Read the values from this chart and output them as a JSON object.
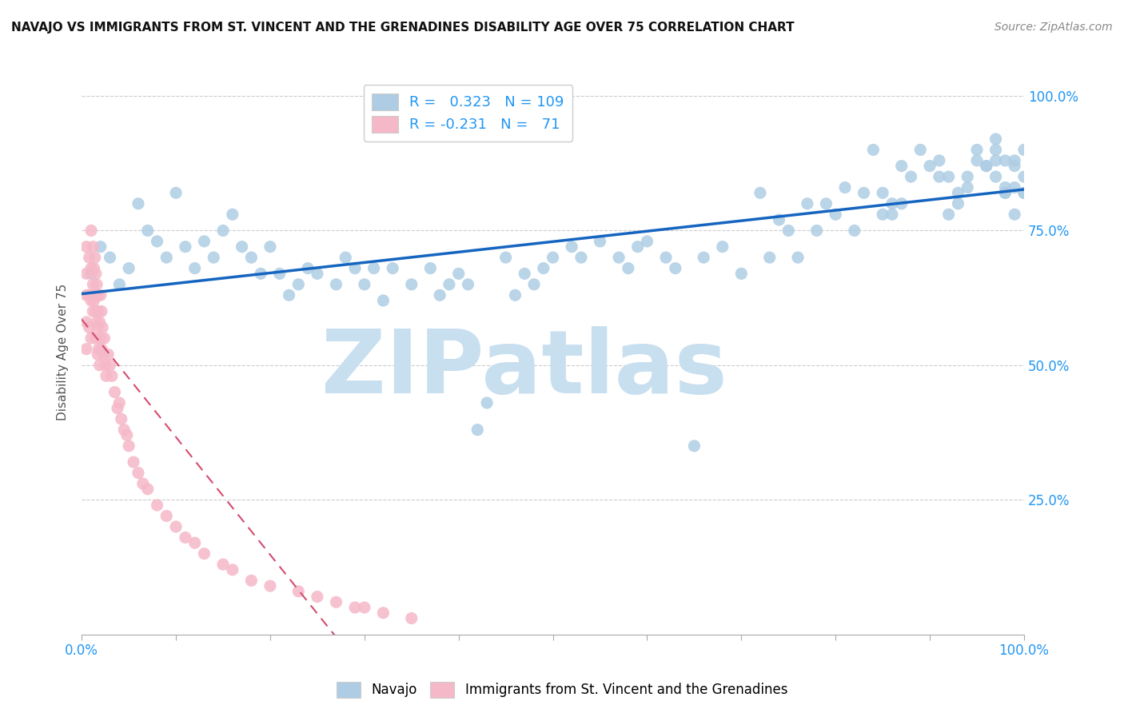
{
  "title": "NAVAJO VS IMMIGRANTS FROM ST. VINCENT AND THE GRENADINES DISABILITY AGE OVER 75 CORRELATION CHART",
  "source": "Source: ZipAtlas.com",
  "ylabel": "Disability Age Over 75",
  "xlabel": "",
  "watermark": "ZIPatlas",
  "navajo_R": 0.323,
  "navajo_N": 109,
  "svg_R": -0.231,
  "svg_N": 71,
  "navajo_color": "#aecde4",
  "svg_color": "#f5b8c8",
  "navajo_trend_color": "#1565C0",
  "svg_trend_color": "#d44c6e",
  "navajo_scatter": {
    "x": [
      0.01,
      0.02,
      0.03,
      0.04,
      0.05,
      0.06,
      0.07,
      0.08,
      0.09,
      0.1,
      0.11,
      0.12,
      0.13,
      0.14,
      0.15,
      0.16,
      0.17,
      0.18,
      0.19,
      0.2,
      0.21,
      0.22,
      0.23,
      0.24,
      0.25,
      0.27,
      0.28,
      0.29,
      0.3,
      0.31,
      0.32,
      0.33,
      0.35,
      0.37,
      0.38,
      0.39,
      0.4,
      0.41,
      0.42,
      0.43,
      0.45,
      0.46,
      0.47,
      0.48,
      0.49,
      0.5,
      0.52,
      0.53,
      0.55,
      0.57,
      0.58,
      0.59,
      0.6,
      0.62,
      0.63,
      0.65,
      0.66,
      0.68,
      0.7,
      0.72,
      0.73,
      0.74,
      0.75,
      0.76,
      0.77,
      0.78,
      0.79,
      0.8,
      0.81,
      0.82,
      0.83,
      0.84,
      0.85,
      0.86,
      0.87,
      0.88,
      0.89,
      0.9,
      0.91,
      0.92,
      0.93,
      0.94,
      0.95,
      0.96,
      0.97,
      0.97,
      0.98,
      0.98,
      0.99,
      0.99,
      1.0,
      1.0,
      1.0,
      0.85,
      0.86,
      0.87,
      0.91,
      0.92,
      0.93,
      0.94,
      0.95,
      0.96,
      0.97,
      0.97,
      0.98,
      0.98,
      0.99,
      0.99,
      1.0
    ],
    "y": [
      0.67,
      0.72,
      0.7,
      0.65,
      0.68,
      0.8,
      0.75,
      0.73,
      0.7,
      0.82,
      0.72,
      0.68,
      0.73,
      0.7,
      0.75,
      0.78,
      0.72,
      0.7,
      0.67,
      0.72,
      0.67,
      0.63,
      0.65,
      0.68,
      0.67,
      0.65,
      0.7,
      0.68,
      0.65,
      0.68,
      0.62,
      0.68,
      0.65,
      0.68,
      0.63,
      0.65,
      0.67,
      0.65,
      0.38,
      0.43,
      0.7,
      0.63,
      0.67,
      0.65,
      0.68,
      0.7,
      0.72,
      0.7,
      0.73,
      0.7,
      0.68,
      0.72,
      0.73,
      0.7,
      0.68,
      0.35,
      0.7,
      0.72,
      0.67,
      0.82,
      0.7,
      0.77,
      0.75,
      0.7,
      0.8,
      0.75,
      0.8,
      0.78,
      0.83,
      0.75,
      0.82,
      0.9,
      0.82,
      0.78,
      0.8,
      0.85,
      0.9,
      0.87,
      0.88,
      0.85,
      0.82,
      0.83,
      0.88,
      0.87,
      0.92,
      0.9,
      0.82,
      0.88,
      0.78,
      0.83,
      0.85,
      0.9,
      0.82,
      0.78,
      0.8,
      0.87,
      0.85,
      0.78,
      0.8,
      0.85,
      0.9,
      0.87,
      0.88,
      0.85,
      0.82,
      0.83,
      0.88,
      0.87,
      0.82
    ]
  },
  "svg_scatter": {
    "x": [
      0.005,
      0.005,
      0.005,
      0.005,
      0.005,
      0.008,
      0.008,
      0.008,
      0.01,
      0.01,
      0.01,
      0.01,
      0.012,
      0.012,
      0.012,
      0.013,
      0.013,
      0.014,
      0.014,
      0.015,
      0.015,
      0.015,
      0.016,
      0.016,
      0.017,
      0.017,
      0.017,
      0.018,
      0.018,
      0.019,
      0.019,
      0.02,
      0.02,
      0.021,
      0.021,
      0.022,
      0.023,
      0.024,
      0.025,
      0.026,
      0.028,
      0.03,
      0.032,
      0.035,
      0.038,
      0.04,
      0.042,
      0.045,
      0.048,
      0.05,
      0.055,
      0.06,
      0.065,
      0.07,
      0.08,
      0.09,
      0.1,
      0.11,
      0.12,
      0.13,
      0.15,
      0.16,
      0.18,
      0.2,
      0.23,
      0.25,
      0.27,
      0.29,
      0.3,
      0.32,
      0.35
    ],
    "y": [
      0.72,
      0.67,
      0.63,
      0.58,
      0.53,
      0.7,
      0.63,
      0.57,
      0.75,
      0.68,
      0.62,
      0.55,
      0.72,
      0.65,
      0.6,
      0.68,
      0.62,
      0.7,
      0.63,
      0.67,
      0.6,
      0.55,
      0.65,
      0.58,
      0.63,
      0.57,
      0.52,
      0.6,
      0.53,
      0.58,
      0.5,
      0.63,
      0.55,
      0.6,
      0.53,
      0.57,
      0.52,
      0.55,
      0.5,
      0.48,
      0.52,
      0.5,
      0.48,
      0.45,
      0.42,
      0.43,
      0.4,
      0.38,
      0.37,
      0.35,
      0.32,
      0.3,
      0.28,
      0.27,
      0.24,
      0.22,
      0.2,
      0.18,
      0.17,
      0.15,
      0.13,
      0.12,
      0.1,
      0.09,
      0.08,
      0.07,
      0.06,
      0.05,
      0.05,
      0.04,
      0.03
    ]
  },
  "xlim": [
    0.0,
    1.0
  ],
  "ylim": [
    0.0,
    1.05
  ],
  "xtick_vals": [
    0.0,
    0.1,
    0.2,
    0.3,
    0.4,
    0.5,
    0.6,
    0.7,
    0.8,
    0.9,
    1.0
  ],
  "xtick_labels": [
    "0.0%",
    "",
    "",
    "",
    "",
    "",
    "",
    "",
    "",
    "",
    "100.0%"
  ],
  "ytick_values": [
    0.25,
    0.5,
    0.75,
    1.0
  ],
  "ytick_labels": [
    "25.0%",
    "50.0%",
    "75.0%",
    "100.0%"
  ],
  "background_color": "#ffffff",
  "grid_color": "#cccccc",
  "title_color": "#111111",
  "axis_label_color": "#555555",
  "tick_color": "#2196F3",
  "watermark_color": "#c8dff0",
  "navajo_legend_label": "Navajo",
  "svg_legend_label": "Immigrants from St. Vincent and the Grenadines"
}
